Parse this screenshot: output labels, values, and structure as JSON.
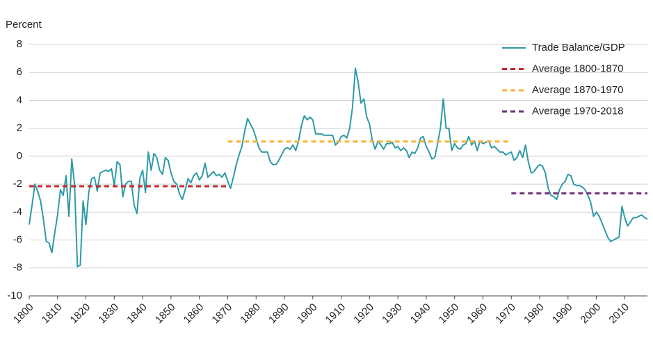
{
  "chart_data": {
    "type": "line",
    "y_label": "Percent",
    "legend": "upper right",
    "grid": true,
    "xlim": [
      1800,
      2018
    ],
    "ylim": [
      -10,
      8
    ],
    "xticks": [
      1800,
      1810,
      1820,
      1830,
      1840,
      1850,
      1860,
      1870,
      1880,
      1890,
      1900,
      1910,
      1920,
      1930,
      1940,
      1950,
      1960,
      1970,
      1980,
      1990,
      2000,
      2010
    ],
    "yticks": [
      -10,
      -8,
      -6,
      -4,
      -2,
      0,
      2,
      4,
      6,
      8
    ],
    "series": [
      {
        "name": "Trade Balance/GDP",
        "color": "#2e9aa6",
        "dashed": false,
        "x": [
          1800,
          1801,
          1802,
          1803,
          1804,
          1805,
          1806,
          1807,
          1808,
          1809,
          1810,
          1811,
          1812,
          1813,
          1814,
          1815,
          1816,
          1817,
          1818,
          1819,
          1820,
          1821,
          1822,
          1823,
          1824,
          1825,
          1826,
          1827,
          1828,
          1829,
          1830,
          1831,
          1832,
          1833,
          1834,
          1835,
          1836,
          1837,
          1838,
          1839,
          1840,
          1841,
          1842,
          1843,
          1844,
          1845,
          1846,
          1847,
          1848,
          1849,
          1850,
          1851,
          1852,
          1853,
          1854,
          1855,
          1856,
          1857,
          1858,
          1859,
          1860,
          1861,
          1862,
          1863,
          1864,
          1865,
          1866,
          1867,
          1868,
          1869,
          1870,
          1871,
          1872,
          1873,
          1874,
          1875,
          1876,
          1877,
          1878,
          1879,
          1880,
          1881,
          1882,
          1883,
          1884,
          1885,
          1886,
          1887,
          1888,
          1889,
          1890,
          1891,
          1892,
          1893,
          1894,
          1895,
          1896,
          1897,
          1898,
          1899,
          1900,
          1901,
          1902,
          1903,
          1904,
          1905,
          1906,
          1907,
          1908,
          1909,
          1910,
          1911,
          1912,
          1913,
          1914,
          1915,
          1916,
          1917,
          1918,
          1919,
          1920,
          1921,
          1922,
          1923,
          1924,
          1925,
          1926,
          1927,
          1928,
          1929,
          1930,
          1931,
          1932,
          1933,
          1934,
          1935,
          1936,
          1937,
          1938,
          1939,
          1940,
          1941,
          1942,
          1943,
          1944,
          1945,
          1946,
          1947,
          1948,
          1949,
          1950,
          1951,
          1952,
          1953,
          1954,
          1955,
          1956,
          1957,
          1958,
          1959,
          1960,
          1961,
          1962,
          1963,
          1964,
          1965,
          1966,
          1967,
          1968,
          1969,
          1970,
          1971,
          1972,
          1973,
          1974,
          1975,
          1976,
          1977,
          1978,
          1979,
          1980,
          1981,
          1982,
          1983,
          1984,
          1985,
          1986,
          1987,
          1988,
          1989,
          1990,
          1991,
          1992,
          1993,
          1994,
          1995,
          1996,
          1997,
          1998,
          1999,
          2000,
          2001,
          2002,
          2003,
          2004,
          2005,
          2006,
          2007,
          2008,
          2009,
          2010,
          2011,
          2012,
          2013,
          2014,
          2015,
          2016,
          2017,
          2018
        ],
        "values": [
          -4.9,
          -3.5,
          -2.0,
          -2.5,
          -3.2,
          -4.5,
          -6.1,
          -6.2,
          -6.9,
          -5.5,
          -4.2,
          -2.4,
          -2.8,
          -1.4,
          -4.3,
          -0.2,
          -2.0,
          -7.9,
          -7.8,
          -3.2,
          -4.9,
          -2.6,
          -1.6,
          -1.5,
          -2.5,
          -1.2,
          -1.1,
          -1.0,
          -1.1,
          -0.9,
          -2.1,
          -0.4,
          -0.6,
          -2.9,
          -2.0,
          -1.8,
          -1.8,
          -3.5,
          -4.1,
          -1.6,
          -1.0,
          -2.6,
          0.3,
          -1.0,
          0.2,
          -0.1,
          -1.0,
          -1.3,
          -0.1,
          -0.3,
          -1.2,
          -1.8,
          -2.0,
          -2.7,
          -3.1,
          -2.4,
          -1.6,
          -1.9,
          -1.4,
          -1.2,
          -1.7,
          -1.4,
          -0.5,
          -1.5,
          -1.3,
          -1.1,
          -1.4,
          -1.3,
          -1.5,
          -1.2,
          -1.8,
          -2.3,
          -1.5,
          -0.6,
          0.1,
          0.7,
          1.8,
          2.7,
          2.3,
          1.9,
          1.3,
          0.6,
          0.3,
          0.3,
          0.3,
          -0.4,
          -0.6,
          -0.6,
          -0.3,
          0.1,
          0.5,
          0.6,
          0.5,
          0.8,
          0.4,
          1.1,
          2.2,
          2.9,
          2.6,
          2.8,
          2.6,
          1.6,
          1.6,
          1.6,
          1.5,
          1.5,
          1.5,
          1.5,
          0.8,
          1.0,
          1.4,
          1.5,
          1.3,
          2.0,
          3.5,
          6.3,
          5.3,
          3.8,
          4.1,
          2.8,
          2.3,
          1.1,
          0.5,
          1.1,
          0.8,
          0.5,
          0.9,
          0.9,
          1.0,
          0.6,
          0.7,
          0.4,
          0.6,
          0.4,
          -0.1,
          0.3,
          0.2,
          0.6,
          1.3,
          1.4,
          0.7,
          0.3,
          -0.2,
          -0.1,
          0.9,
          2.0,
          4.1,
          2.0,
          2.0,
          0.4,
          0.9,
          0.6,
          0.5,
          0.8,
          0.9,
          1.4,
          0.8,
          1.1,
          0.4,
          1.1,
          0.9,
          1.0,
          1.1,
          0.6,
          0.7,
          0.5,
          0.3,
          0.3,
          0.1,
          0.2,
          0.3,
          -0.3,
          -0.1,
          0.4,
          -0.1,
          0.8,
          -0.4,
          -1.2,
          -1.1,
          -0.8,
          -0.6,
          -0.7,
          -1.2,
          -2.3,
          -2.8,
          -2.9,
          -3.1,
          -2.4,
          -2.0,
          -1.8,
          -1.3,
          -1.4,
          -2.0,
          -2.1,
          -2.1,
          -2.2,
          -2.4,
          -2.8,
          -3.3,
          -4.3,
          -4.0,
          -4.3,
          -4.8,
          -5.3,
          -5.8,
          -6.1,
          -6.0,
          -5.9,
          -5.8,
          -3.6,
          -4.4,
          -5.0,
          -4.7,
          -4.4,
          -4.4,
          -4.3,
          -4.2,
          -4.4,
          -4.5
        ]
      },
      {
        "name": "Average 1800-1870",
        "color": "#c0282d",
        "dashed": true,
        "x": [
          1800,
          1870
        ],
        "values": [
          -2.15,
          -2.15
        ]
      },
      {
        "name": "Average 1870-1970",
        "color": "#f5b335",
        "dashed": true,
        "x": [
          1870,
          1970
        ],
        "values": [
          1.05,
          1.05
        ]
      },
      {
        "name": "Average 1970-2018",
        "color": "#6b2c7a",
        "dashed": true,
        "x": [
          1970,
          2018
        ],
        "values": [
          -2.65,
          -2.65
        ]
      }
    ]
  }
}
